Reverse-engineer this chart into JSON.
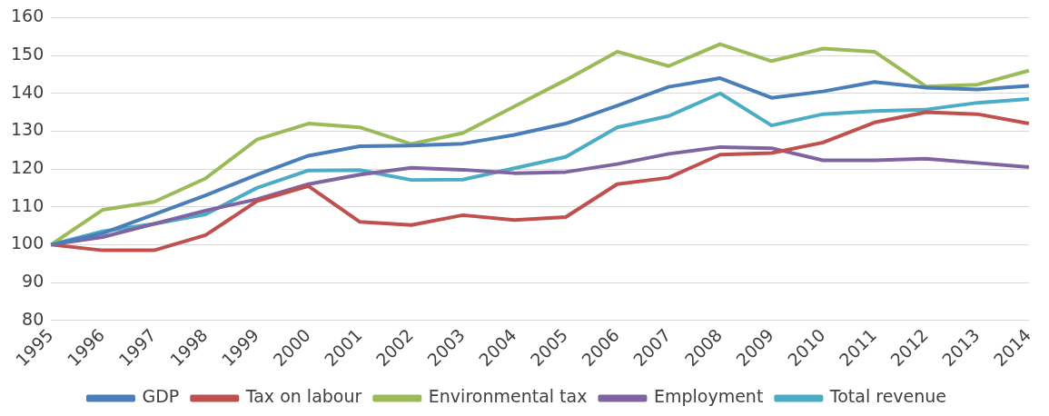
{
  "chart_data": {
    "type": "line",
    "categories": [
      "1995",
      "1996",
      "1997",
      "1998",
      "1999",
      "2000",
      "2001",
      "2002",
      "2003",
      "2004",
      "2005",
      "2006",
      "2007",
      "2008",
      "2009",
      "2010",
      "2011",
      "2012",
      "2013",
      "2014"
    ],
    "series": [
      {
        "name": "GDP",
        "color": "#4a7ebb",
        "values": [
          100,
          103,
          108,
          113,
          118.5,
          123.5,
          126,
          126.2,
          126.7,
          129,
          132,
          136.7,
          141.7,
          144,
          138.8,
          140.5,
          143,
          141.5,
          141,
          142
        ]
      },
      {
        "name": "Tax on labour",
        "color": "#c0504d",
        "values": [
          100,
          98.5,
          98.5,
          102.5,
          111.5,
          115.5,
          106,
          105.2,
          107.8,
          106.5,
          107.3,
          116,
          117.7,
          123.8,
          124.2,
          127,
          132.3,
          135,
          134.5,
          132
        ]
      },
      {
        "name": "Environmental tax",
        "color": "#9bbb59",
        "values": [
          100,
          109.2,
          111.3,
          117.5,
          127.8,
          132,
          131,
          126.6,
          129.5,
          136.5,
          143.5,
          151,
          147.2,
          153,
          148.5,
          151.8,
          151,
          141.8,
          142.3,
          146
        ]
      },
      {
        "name": "Employment",
        "color": "#8064a2",
        "values": [
          100,
          102,
          105.5,
          109,
          112,
          116,
          118.5,
          120.3,
          119.8,
          118.9,
          119.2,
          121.3,
          124,
          125.8,
          125.5,
          122.3,
          122.3,
          122.7,
          121.6,
          120.5
        ]
      },
      {
        "name": "Total revenue",
        "color": "#4bacc6",
        "values": [
          100,
          103.5,
          105.5,
          108,
          115,
          119.6,
          119.7,
          117.1,
          117.2,
          120.2,
          123.2,
          131,
          134,
          140,
          131.5,
          134.5,
          135.3,
          135.7,
          137.5,
          138.5
        ]
      }
    ],
    "ylim": [
      80,
      160
    ],
    "yticks": [
      80,
      90,
      100,
      110,
      120,
      130,
      140,
      150,
      160
    ],
    "grid": "y",
    "legend": "bottom",
    "marker": "none",
    "line_style": "solid"
  }
}
